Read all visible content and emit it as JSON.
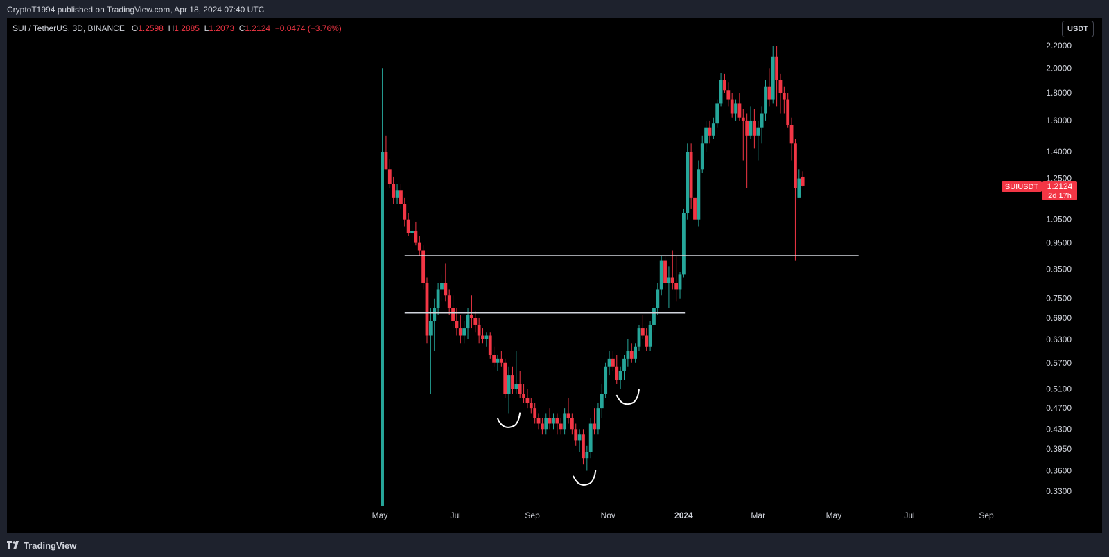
{
  "header": {
    "published": "CryptoT1994 published on TradingView.com, Apr 18, 2024 07:40 UTC"
  },
  "legend": {
    "symbol": "SUI / TetherUS, 3D, BINANCE",
    "o_label": "O",
    "o_value": "1.2598",
    "h_label": "H",
    "h_value": "1.2885",
    "l_label": "L",
    "l_value": "1.2073",
    "c_label": "C",
    "c_value": "1.2124",
    "change": "−0.0474 (−3.76%)"
  },
  "currency_button": "USDT",
  "footer": {
    "brand": "TradingView"
  },
  "price_tag": {
    "symbol": "SUIUSDT",
    "price": "1.2124",
    "countdown": "2d 17h"
  },
  "colors": {
    "up": "#26a69a",
    "down": "#f23645",
    "background": "#000000",
    "frame": "#1e222d"
  },
  "chart_data": {
    "type": "candlestick",
    "y_scale": "log",
    "ylim": [
      0.3,
      2.3
    ],
    "y_ticks": [
      "2.2000",
      "2.0000",
      "1.8000",
      "1.6000",
      "1.4000",
      "1.2500",
      "1.0500",
      "0.9500",
      "0.8500",
      "0.7500",
      "0.6900",
      "0.6300",
      "0.5700",
      "0.5100",
      "0.4700",
      "0.4300",
      "0.3950",
      "0.3600",
      "0.3300"
    ],
    "x_ticks": [
      "May",
      "Jul",
      "Sep",
      "Nov",
      "2024",
      "Mar",
      "May",
      "Jul",
      "Sep"
    ],
    "x_tick_dates": [
      "2023-05-01",
      "2023-07-01",
      "2023-09-01",
      "2023-11-01",
      "2024-01-01",
      "2024-03-01",
      "2024-05-01",
      "2024-07-01",
      "2024-09-01"
    ],
    "bold_ticks": [
      "2024"
    ],
    "xlim": [
      "2023-05-01",
      "2024-09-01"
    ],
    "candles": [
      {
        "d": "2023-05-03",
        "o": 0.31,
        "h": 2.0,
        "l": 0.31,
        "c": 1.4
      },
      {
        "d": "2023-05-06",
        "o": 1.4,
        "h": 1.5,
        "l": 1.3,
        "c": 1.3
      },
      {
        "d": "2023-05-09",
        "o": 1.3,
        "h": 1.36,
        "l": 1.2,
        "c": 1.22
      },
      {
        "d": "2023-05-12",
        "o": 1.22,
        "h": 1.26,
        "l": 1.12,
        "c": 1.15
      },
      {
        "d": "2023-05-15",
        "o": 1.15,
        "h": 1.22,
        "l": 1.12,
        "c": 1.19
      },
      {
        "d": "2023-05-18",
        "o": 1.19,
        "h": 1.22,
        "l": 1.1,
        "c": 1.12
      },
      {
        "d": "2023-05-21",
        "o": 1.12,
        "h": 1.15,
        "l": 1.02,
        "c": 1.05
      },
      {
        "d": "2023-05-24",
        "o": 1.05,
        "h": 1.08,
        "l": 0.98,
        "c": 0.99
      },
      {
        "d": "2023-05-27",
        "o": 0.99,
        "h": 1.03,
        "l": 0.96,
        "c": 1.0
      },
      {
        "d": "2023-05-30",
        "o": 1.0,
        "h": 1.04,
        "l": 0.94,
        "c": 0.95
      },
      {
        "d": "2023-06-02",
        "o": 0.95,
        "h": 0.98,
        "l": 0.9,
        "c": 0.92
      },
      {
        "d": "2023-06-05",
        "o": 0.92,
        "h": 0.94,
        "l": 0.78,
        "c": 0.8
      },
      {
        "d": "2023-06-08",
        "o": 0.8,
        "h": 0.82,
        "l": 0.62,
        "c": 0.64
      },
      {
        "d": "2023-06-11",
        "o": 0.64,
        "h": 0.72,
        "l": 0.5,
        "c": 0.68
      },
      {
        "d": "2023-06-14",
        "o": 0.68,
        "h": 0.75,
        "l": 0.6,
        "c": 0.72
      },
      {
        "d": "2023-06-17",
        "o": 0.72,
        "h": 0.8,
        "l": 0.7,
        "c": 0.78
      },
      {
        "d": "2023-06-20",
        "o": 0.78,
        "h": 0.83,
        "l": 0.74,
        "c": 0.8
      },
      {
        "d": "2023-06-23",
        "o": 0.8,
        "h": 0.87,
        "l": 0.74,
        "c": 0.76
      },
      {
        "d": "2023-06-26",
        "o": 0.76,
        "h": 0.78,
        "l": 0.7,
        "c": 0.72
      },
      {
        "d": "2023-06-29",
        "o": 0.72,
        "h": 0.76,
        "l": 0.66,
        "c": 0.68
      },
      {
        "d": "2023-07-02",
        "o": 0.68,
        "h": 0.72,
        "l": 0.64,
        "c": 0.66
      },
      {
        "d": "2023-07-05",
        "o": 0.66,
        "h": 0.7,
        "l": 0.62,
        "c": 0.64
      },
      {
        "d": "2023-07-08",
        "o": 0.64,
        "h": 0.68,
        "l": 0.62,
        "c": 0.66
      },
      {
        "d": "2023-07-11",
        "o": 0.66,
        "h": 0.72,
        "l": 0.63,
        "c": 0.7
      },
      {
        "d": "2023-07-14",
        "o": 0.7,
        "h": 0.76,
        "l": 0.66,
        "c": 0.69
      },
      {
        "d": "2023-07-17",
        "o": 0.69,
        "h": 0.71,
        "l": 0.65,
        "c": 0.67
      },
      {
        "d": "2023-07-20",
        "o": 0.67,
        "h": 0.69,
        "l": 0.62,
        "c": 0.64
      },
      {
        "d": "2023-07-23",
        "o": 0.64,
        "h": 0.66,
        "l": 0.62,
        "c": 0.63
      },
      {
        "d": "2023-07-26",
        "o": 0.63,
        "h": 0.65,
        "l": 0.61,
        "c": 0.64
      },
      {
        "d": "2023-07-29",
        "o": 0.64,
        "h": 0.65,
        "l": 0.58,
        "c": 0.59
      },
      {
        "d": "2023-08-01",
        "o": 0.59,
        "h": 0.61,
        "l": 0.56,
        "c": 0.57
      },
      {
        "d": "2023-08-04",
        "o": 0.57,
        "h": 0.59,
        "l": 0.55,
        "c": 0.58
      },
      {
        "d": "2023-08-07",
        "o": 0.58,
        "h": 0.6,
        "l": 0.56,
        "c": 0.57
      },
      {
        "d": "2023-08-10",
        "o": 0.57,
        "h": 0.58,
        "l": 0.49,
        "c": 0.5
      },
      {
        "d": "2023-08-13",
        "o": 0.5,
        "h": 0.56,
        "l": 0.46,
        "c": 0.54
      },
      {
        "d": "2023-08-16",
        "o": 0.54,
        "h": 0.56,
        "l": 0.5,
        "c": 0.51
      },
      {
        "d": "2023-08-19",
        "o": 0.51,
        "h": 0.6,
        "l": 0.5,
        "c": 0.52
      },
      {
        "d": "2023-08-22",
        "o": 0.52,
        "h": 0.55,
        "l": 0.49,
        "c": 0.5
      },
      {
        "d": "2023-08-25",
        "o": 0.5,
        "h": 0.52,
        "l": 0.48,
        "c": 0.49
      },
      {
        "d": "2023-08-28",
        "o": 0.49,
        "h": 0.51,
        "l": 0.47,
        "c": 0.48
      },
      {
        "d": "2023-08-31",
        "o": 0.48,
        "h": 0.49,
        "l": 0.46,
        "c": 0.47
      },
      {
        "d": "2023-09-03",
        "o": 0.47,
        "h": 0.48,
        "l": 0.44,
        "c": 0.45
      },
      {
        "d": "2023-09-06",
        "o": 0.45,
        "h": 0.46,
        "l": 0.43,
        "c": 0.44
      },
      {
        "d": "2023-09-09",
        "o": 0.44,
        "h": 0.45,
        "l": 0.42,
        "c": 0.43
      },
      {
        "d": "2023-09-12",
        "o": 0.43,
        "h": 0.46,
        "l": 0.42,
        "c": 0.45
      },
      {
        "d": "2023-09-15",
        "o": 0.45,
        "h": 0.47,
        "l": 0.43,
        "c": 0.44
      },
      {
        "d": "2023-09-18",
        "o": 0.44,
        "h": 0.46,
        "l": 0.43,
        "c": 0.45
      },
      {
        "d": "2023-09-21",
        "o": 0.45,
        "h": 0.46,
        "l": 0.42,
        "c": 0.44
      },
      {
        "d": "2023-09-24",
        "o": 0.44,
        "h": 0.45,
        "l": 0.42,
        "c": 0.43
      },
      {
        "d": "2023-09-27",
        "o": 0.43,
        "h": 0.47,
        "l": 0.42,
        "c": 0.46
      },
      {
        "d": "2023-09-30",
        "o": 0.46,
        "h": 0.49,
        "l": 0.44,
        "c": 0.45
      },
      {
        "d": "2023-10-03",
        "o": 0.45,
        "h": 0.46,
        "l": 0.42,
        "c": 0.43
      },
      {
        "d": "2023-10-06",
        "o": 0.43,
        "h": 0.44,
        "l": 0.4,
        "c": 0.41
      },
      {
        "d": "2023-10-09",
        "o": 0.41,
        "h": 0.43,
        "l": 0.39,
        "c": 0.42
      },
      {
        "d": "2023-10-12",
        "o": 0.42,
        "h": 0.43,
        "l": 0.37,
        "c": 0.38
      },
      {
        "d": "2023-10-15",
        "o": 0.38,
        "h": 0.4,
        "l": 0.36,
        "c": 0.39
      },
      {
        "d": "2023-10-18",
        "o": 0.39,
        "h": 0.45,
        "l": 0.38,
        "c": 0.44
      },
      {
        "d": "2023-10-21",
        "o": 0.44,
        "h": 0.47,
        "l": 0.42,
        "c": 0.43
      },
      {
        "d": "2023-10-24",
        "o": 0.43,
        "h": 0.48,
        "l": 0.42,
        "c": 0.47
      },
      {
        "d": "2023-10-27",
        "o": 0.47,
        "h": 0.52,
        "l": 0.45,
        "c": 0.5
      },
      {
        "d": "2023-10-30",
        "o": 0.5,
        "h": 0.57,
        "l": 0.49,
        "c": 0.56
      },
      {
        "d": "2023-11-02",
        "o": 0.56,
        "h": 0.6,
        "l": 0.54,
        "c": 0.58
      },
      {
        "d": "2023-11-05",
        "o": 0.58,
        "h": 0.6,
        "l": 0.55,
        "c": 0.56
      },
      {
        "d": "2023-11-08",
        "o": 0.56,
        "h": 0.59,
        "l": 0.52,
        "c": 0.53
      },
      {
        "d": "2023-11-11",
        "o": 0.53,
        "h": 0.56,
        "l": 0.51,
        "c": 0.55
      },
      {
        "d": "2023-11-14",
        "o": 0.55,
        "h": 0.59,
        "l": 0.53,
        "c": 0.58
      },
      {
        "d": "2023-11-17",
        "o": 0.58,
        "h": 0.63,
        "l": 0.56,
        "c": 0.6
      },
      {
        "d": "2023-11-20",
        "o": 0.6,
        "h": 0.62,
        "l": 0.57,
        "c": 0.58
      },
      {
        "d": "2023-11-23",
        "o": 0.58,
        "h": 0.62,
        "l": 0.57,
        "c": 0.61
      },
      {
        "d": "2023-11-26",
        "o": 0.61,
        "h": 0.67,
        "l": 0.6,
        "c": 0.66
      },
      {
        "d": "2023-11-29",
        "o": 0.66,
        "h": 0.7,
        "l": 0.63,
        "c": 0.64
      },
      {
        "d": "2023-12-02",
        "o": 0.64,
        "h": 0.66,
        "l": 0.6,
        "c": 0.61
      },
      {
        "d": "2023-12-05",
        "o": 0.61,
        "h": 0.68,
        "l": 0.6,
        "c": 0.67
      },
      {
        "d": "2023-12-08",
        "o": 0.67,
        "h": 0.73,
        "l": 0.65,
        "c": 0.72
      },
      {
        "d": "2023-12-11",
        "o": 0.72,
        "h": 0.8,
        "l": 0.7,
        "c": 0.78
      },
      {
        "d": "2023-12-14",
        "o": 0.78,
        "h": 0.9,
        "l": 0.76,
        "c": 0.88
      },
      {
        "d": "2023-12-17",
        "o": 0.88,
        "h": 0.9,
        "l": 0.78,
        "c": 0.8
      },
      {
        "d": "2023-12-20",
        "o": 0.8,
        "h": 0.86,
        "l": 0.72,
        "c": 0.82
      },
      {
        "d": "2023-12-23",
        "o": 0.82,
        "h": 0.92,
        "l": 0.78,
        "c": 0.8
      },
      {
        "d": "2023-12-26",
        "o": 0.8,
        "h": 0.9,
        "l": 0.74,
        "c": 0.78
      },
      {
        "d": "2023-12-29",
        "o": 0.78,
        "h": 0.84,
        "l": 0.75,
        "c": 0.83
      },
      {
        "d": "2024-01-01",
        "o": 0.83,
        "h": 1.1,
        "l": 0.82,
        "c": 1.08
      },
      {
        "d": "2024-01-04",
        "o": 1.08,
        "h": 1.45,
        "l": 1.05,
        "c": 1.4
      },
      {
        "d": "2024-01-07",
        "o": 1.4,
        "h": 1.45,
        "l": 1.1,
        "c": 1.15
      },
      {
        "d": "2024-01-10",
        "o": 1.15,
        "h": 1.25,
        "l": 1.0,
        "c": 1.05
      },
      {
        "d": "2024-01-13",
        "o": 1.05,
        "h": 1.35,
        "l": 1.02,
        "c": 1.3
      },
      {
        "d": "2024-01-16",
        "o": 1.3,
        "h": 1.5,
        "l": 1.28,
        "c": 1.45
      },
      {
        "d": "2024-01-19",
        "o": 1.45,
        "h": 1.6,
        "l": 1.4,
        "c": 1.55
      },
      {
        "d": "2024-01-22",
        "o": 1.55,
        "h": 1.6,
        "l": 1.45,
        "c": 1.5
      },
      {
        "d": "2024-01-25",
        "o": 1.5,
        "h": 1.62,
        "l": 1.48,
        "c": 1.58
      },
      {
        "d": "2024-01-28",
        "o": 1.58,
        "h": 1.75,
        "l": 1.55,
        "c": 1.72
      },
      {
        "d": "2024-01-31",
        "o": 1.72,
        "h": 1.96,
        "l": 1.7,
        "c": 1.9
      },
      {
        "d": "2024-02-03",
        "o": 1.9,
        "h": 1.95,
        "l": 1.8,
        "c": 1.82
      },
      {
        "d": "2024-02-06",
        "o": 1.82,
        "h": 1.88,
        "l": 1.7,
        "c": 1.75
      },
      {
        "d": "2024-02-09",
        "o": 1.75,
        "h": 1.8,
        "l": 1.62,
        "c": 1.65
      },
      {
        "d": "2024-02-12",
        "o": 1.65,
        "h": 1.75,
        "l": 1.6,
        "c": 1.72
      },
      {
        "d": "2024-02-15",
        "o": 1.72,
        "h": 1.8,
        "l": 1.6,
        "c": 1.62
      },
      {
        "d": "2024-02-18",
        "o": 1.62,
        "h": 1.68,
        "l": 1.35,
        "c": 1.6
      },
      {
        "d": "2024-02-21",
        "o": 1.6,
        "h": 1.65,
        "l": 1.2,
        "c": 1.5
      },
      {
        "d": "2024-02-24",
        "o": 1.5,
        "h": 1.7,
        "l": 1.48,
        "c": 1.6
      },
      {
        "d": "2024-02-27",
        "o": 1.6,
        "h": 1.68,
        "l": 1.42,
        "c": 1.5
      },
      {
        "d": "2024-03-01",
        "o": 1.5,
        "h": 1.6,
        "l": 1.35,
        "c": 1.55
      },
      {
        "d": "2024-03-04",
        "o": 1.55,
        "h": 1.7,
        "l": 1.45,
        "c": 1.65
      },
      {
        "d": "2024-03-07",
        "o": 1.65,
        "h": 1.9,
        "l": 1.6,
        "c": 1.85
      },
      {
        "d": "2024-03-10",
        "o": 1.85,
        "h": 2.0,
        "l": 1.7,
        "c": 1.75
      },
      {
        "d": "2024-03-13",
        "o": 1.75,
        "h": 2.2,
        "l": 1.72,
        "c": 2.1
      },
      {
        "d": "2024-03-16",
        "o": 2.1,
        "h": 2.2,
        "l": 1.7,
        "c": 1.9
      },
      {
        "d": "2024-03-19",
        "o": 1.9,
        "h": 1.95,
        "l": 1.65,
        "c": 1.8
      },
      {
        "d": "2024-03-22",
        "o": 1.8,
        "h": 1.85,
        "l": 1.65,
        "c": 1.75
      },
      {
        "d": "2024-03-25",
        "o": 1.75,
        "h": 1.8,
        "l": 1.55,
        "c": 1.57
      },
      {
        "d": "2024-03-28",
        "o": 1.57,
        "h": 1.62,
        "l": 1.35,
        "c": 1.45
      },
      {
        "d": "2024-03-31",
        "o": 1.45,
        "h": 1.48,
        "l": 0.88,
        "c": 1.2
      },
      {
        "d": "2024-04-03",
        "o": 1.15,
        "h": 1.3,
        "l": 1.15,
        "c": 1.25
      },
      {
        "d": "2024-04-06",
        "o": 1.2598,
        "h": 1.2885,
        "l": 1.2073,
        "c": 1.2124
      }
    ],
    "horizontal_lines": [
      {
        "price": 0.9,
        "from": "2023-05-21",
        "to": "2024-05-21"
      },
      {
        "price": 0.705,
        "from": "2023-05-21",
        "to": "2024-01-02"
      }
    ],
    "annotations": [
      "hand-drawn arc under 2023-08-13 low",
      "hand-drawn arc under 2023-10-13 low",
      "hand-drawn arc under 2023-11-16 low"
    ]
  }
}
